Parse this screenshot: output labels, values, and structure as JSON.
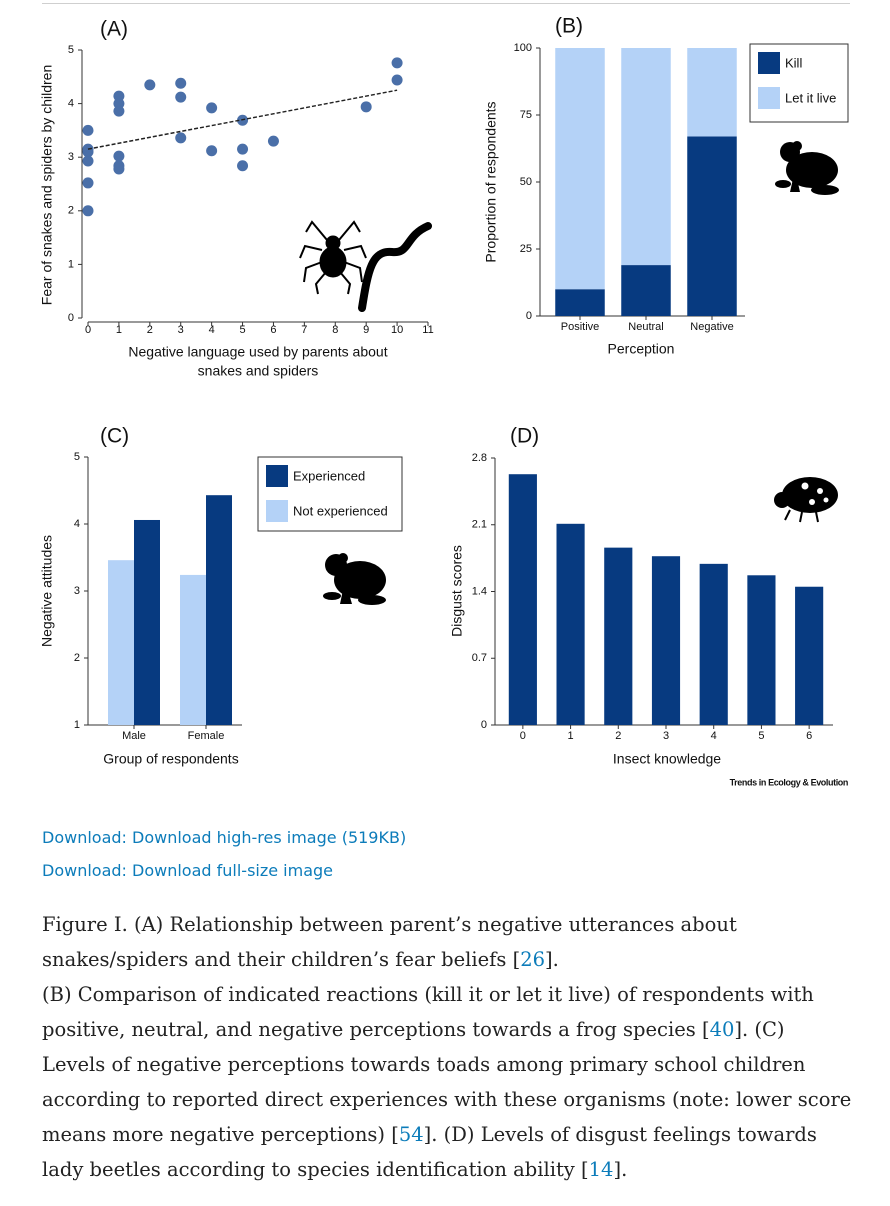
{
  "chart_data": [
    {
      "type": "scatter",
      "title": "(A)",
      "xlabel": [
        "Negative language used by parents about",
        "snakes and spiders"
      ],
      "ylabel": "Fear of snakes and spiders by children",
      "color": "#4a6fa8",
      "x": [
        0,
        0,
        0,
        0,
        0,
        0,
        1,
        1,
        1,
        1,
        1,
        1,
        2,
        3,
        3,
        3,
        4,
        4,
        5,
        5,
        5,
        6,
        9,
        10,
        10
      ],
      "y": [
        3.5,
        3.15,
        3.1,
        2.93,
        2.52,
        2.0,
        4.14,
        4.0,
        3.86,
        3.02,
        2.84,
        2.78,
        4.35,
        4.38,
        4.12,
        3.36,
        3.92,
        3.12,
        3.69,
        3.15,
        2.84,
        3.3,
        3.94,
        4.76,
        4.44
      ],
      "trendline": {
        "x": [
          0,
          10
        ],
        "y": [
          3.15,
          4.25
        ]
      },
      "xlim": [
        0,
        11
      ],
      "xticks": [
        0,
        1,
        2,
        3,
        4,
        5,
        6,
        7,
        8,
        9,
        10,
        11
      ],
      "ylim": [
        0,
        5
      ],
      "yticks": [
        0,
        1,
        2,
        3,
        4,
        5
      ]
    },
    {
      "type": "stacked_bar",
      "title": "(B)",
      "xlabel": "Perception",
      "ylabel": "Proportion of respondents",
      "categories": [
        "Positive",
        "Neutral",
        "Negative"
      ],
      "series": [
        {
          "name": "Kill",
          "color": "#073a80",
          "values": [
            10,
            19,
            67
          ]
        },
        {
          "name": "Let it live",
          "color": "#b4d2f7",
          "values": [
            90,
            81,
            33
          ]
        }
      ],
      "ylim": [
        0,
        100
      ],
      "yticks": [
        0,
        25,
        50,
        75,
        100
      ],
      "legend": "top-right"
    },
    {
      "type": "grouped_bar",
      "title": "(C)",
      "xlabel": "Group of respondents",
      "ylabel": "Negative attitudes",
      "categories": [
        "Male",
        "Female"
      ],
      "series": [
        {
          "name": "Experienced",
          "color": "#073a80",
          "values": [
            4.06,
            4.43
          ]
        },
        {
          "name": "Not experienced",
          "color": "#b4d2f7",
          "values": [
            3.46,
            3.24
          ]
        }
      ],
      "ylim": [
        1,
        5
      ],
      "yticks": [
        1,
        2,
        3,
        4,
        5
      ],
      "legend": "top-right"
    },
    {
      "type": "bar",
      "title": "(D)",
      "xlabel": "Insect knowledge",
      "ylabel": "Disgust scores",
      "categories": [
        "0",
        "1",
        "2",
        "3",
        "4",
        "5",
        "6"
      ],
      "values": [
        2.63,
        2.11,
        1.86,
        1.77,
        1.69,
        1.57,
        1.45
      ],
      "color": "#073a80",
      "ylim": [
        0,
        2.8
      ],
      "yticks": [
        0,
        0.7,
        1.4,
        2.1,
        2.8
      ]
    }
  ],
  "credit": "Trends in Ecology & Evolution",
  "links": [
    "Download: Download high-res image (519KB)",
    "Download: Download full-size image"
  ],
  "caption": [
    [
      "Figure I. (A) Relationship between parent’s negative utterances about snakes/spiders and their children’s fear beliefs [",
      {
        "ref": "26"
      },
      "]."
    ],
    [
      "(B) Comparison of indicated reactions (kill it or let it live) of respondents with positive, neutral, and negative perceptions towards a frog species [",
      {
        "ref": "40"
      },
      "]. (C) Levels of negative perceptions towards toads among primary school children according to reported direct experiences with these organisms (note: lower score means more negative perceptions) [",
      {
        "ref": "54"
      },
      "]. (D) Levels of disgust feelings towards lady beetles according to species identification ability [",
      {
        "ref": "14"
      },
      "]."
    ]
  ]
}
